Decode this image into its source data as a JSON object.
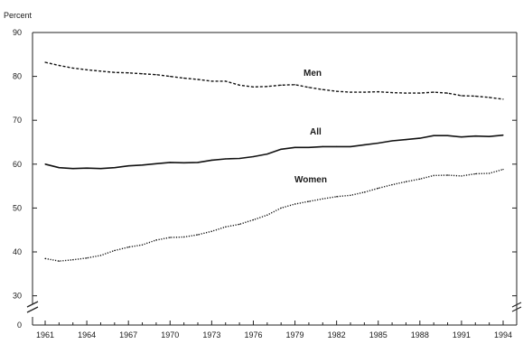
{
  "chart_data": {
    "type": "line",
    "ylabel": "Percent",
    "xlabel": "",
    "title": "",
    "ylim": [
      0,
      90
    ],
    "y_axis_break": true,
    "yticks": [
      "0",
      "30",
      "40",
      "50",
      "60",
      "70",
      "80",
      "90"
    ],
    "xticks": [
      "1961",
      "1964",
      "1967",
      "1970",
      "1973",
      "1976",
      "1979",
      "1982",
      "1985",
      "1988",
      "1991",
      "1994"
    ],
    "xlim": [
      1960.5,
      1994.5
    ],
    "grid": false,
    "series": [
      {
        "name": "Men",
        "line_style": "dashed",
        "x": [
          1961,
          1962,
          1963,
          1964,
          1965,
          1966,
          1967,
          1968,
          1969,
          1970,
          1971,
          1972,
          1973,
          1974,
          1975,
          1976,
          1977,
          1978,
          1979,
          1980,
          1981,
          1982,
          1983,
          1984,
          1985,
          1986,
          1987,
          1988,
          1989,
          1990,
          1991,
          1992,
          1993,
          1994
        ],
        "values": [
          83.2,
          82.5,
          81.9,
          81.5,
          81.2,
          80.9,
          80.8,
          80.6,
          80.4,
          80.0,
          79.6,
          79.3,
          78.9,
          78.9,
          78.0,
          77.6,
          77.7,
          78.0,
          78.1,
          77.5,
          77.0,
          76.6,
          76.4,
          76.4,
          76.5,
          76.3,
          76.2,
          76.2,
          76.4,
          76.2,
          75.6,
          75.5,
          75.2,
          74.8
        ]
      },
      {
        "name": "All",
        "line_style": "solid",
        "x": [
          1961,
          1962,
          1963,
          1964,
          1965,
          1966,
          1967,
          1968,
          1969,
          1970,
          1971,
          1972,
          1973,
          1974,
          1975,
          1976,
          1977,
          1978,
          1979,
          1980,
          1981,
          1982,
          1983,
          1984,
          1985,
          1986,
          1987,
          1988,
          1989,
          1990,
          1991,
          1992,
          1993,
          1994
        ],
        "values": [
          60.0,
          59.2,
          59.0,
          59.1,
          59.0,
          59.2,
          59.6,
          59.8,
          60.1,
          60.4,
          60.3,
          60.4,
          60.9,
          61.2,
          61.3,
          61.7,
          62.3,
          63.4,
          63.8,
          63.8,
          64.0,
          64.0,
          64.0,
          64.4,
          64.8,
          65.3,
          65.6,
          65.9,
          66.5,
          66.5,
          66.2,
          66.4,
          66.3,
          66.6
        ]
      },
      {
        "name": "Women",
        "line_style": "dotted",
        "x": [
          1961,
          1962,
          1963,
          1964,
          1965,
          1966,
          1967,
          1968,
          1969,
          1970,
          1971,
          1972,
          1973,
          1974,
          1975,
          1976,
          1977,
          1978,
          1979,
          1980,
          1981,
          1982,
          1983,
          1984,
          1985,
          1986,
          1987,
          1988,
          1989,
          1990,
          1991,
          1992,
          1993,
          1994
        ],
        "values": [
          38.5,
          37.9,
          38.2,
          38.6,
          39.2,
          40.3,
          41.1,
          41.6,
          42.7,
          43.3,
          43.4,
          43.9,
          44.7,
          45.7,
          46.3,
          47.3,
          48.4,
          50.0,
          50.9,
          51.5,
          52.1,
          52.6,
          52.9,
          53.6,
          54.5,
          55.3,
          56.0,
          56.6,
          57.4,
          57.5,
          57.3,
          57.8,
          57.9,
          58.8
        ]
      }
    ]
  }
}
